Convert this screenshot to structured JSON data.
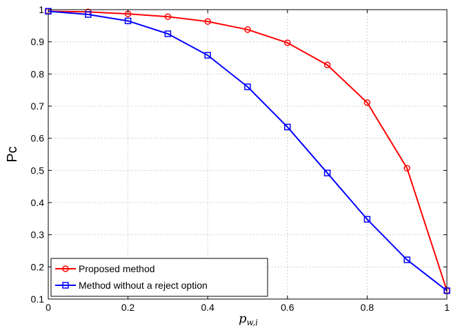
{
  "chart_data": {
    "type": "line",
    "xlabel_base": "p",
    "xlabel_sub": "w,i",
    "ylabel": "Pc",
    "xlim": [
      0,
      1
    ],
    "ylim": [
      0.1,
      1
    ],
    "grid": true,
    "legend_position": "bottom-left",
    "x": [
      0,
      0.1,
      0.2,
      0.3,
      0.4,
      0.5,
      0.6,
      0.7,
      0.8,
      0.9,
      1.0
    ],
    "x_ticks": [
      "0",
      "0.2",
      "0.4",
      "0.6",
      "0.8",
      "1"
    ],
    "y_ticks": [
      "0.1",
      "0.2",
      "0.3",
      "0.4",
      "0.5",
      "0.6",
      "0.7",
      "0.8",
      "0.9",
      "1"
    ],
    "series": [
      {
        "name": "Proposed method",
        "color": "#ff0000",
        "marker": "circle",
        "values": [
          0.995,
          0.993,
          0.987,
          0.978,
          0.963,
          0.938,
          0.897,
          0.828,
          0.711,
          0.507,
          0.126
        ]
      },
      {
        "name": "Method without a reject option",
        "color": "#0000ff",
        "marker": "square",
        "values": [
          0.995,
          0.985,
          0.965,
          0.925,
          0.858,
          0.76,
          0.635,
          0.492,
          0.348,
          0.222,
          0.126
        ]
      }
    ]
  }
}
